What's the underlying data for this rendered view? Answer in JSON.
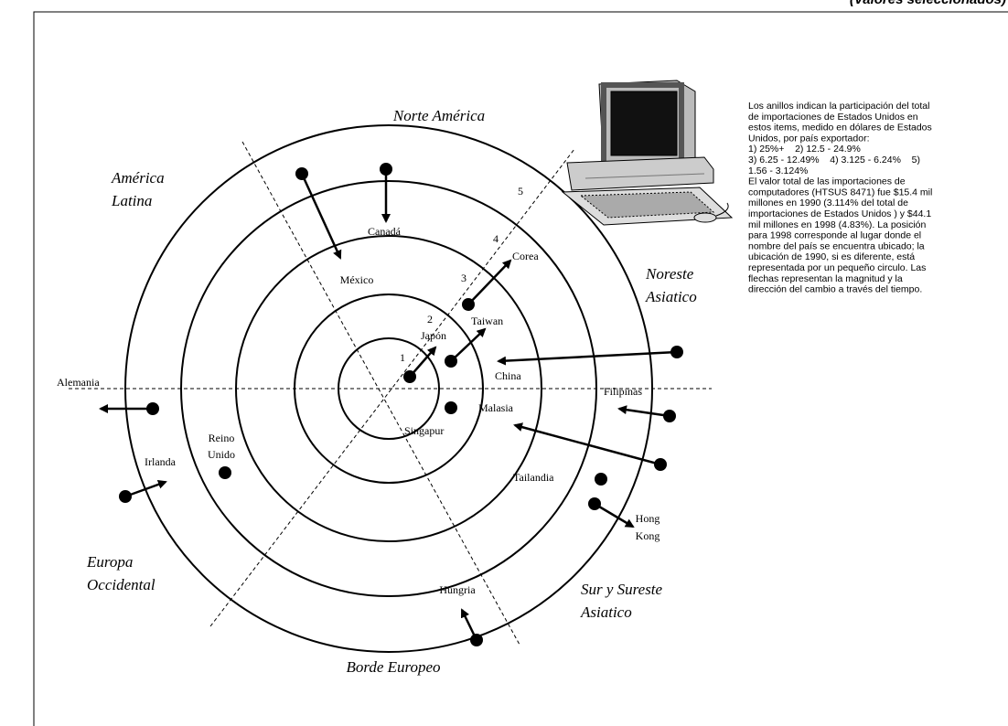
{
  "header": {
    "subtitle": "(Valores seleccionados)"
  },
  "regions": {
    "norte_america": "Norte América",
    "america_latina": [
      "América",
      "Latina"
    ],
    "noreste_asiatico": [
      "Noreste",
      "Asiatico"
    ],
    "europa_occidental": [
      "Europa",
      "Occidental"
    ],
    "sur_sureste_asiatico": [
      "Sur y Sureste",
      "Asiatico"
    ],
    "borde_europeo": "Borde Europeo"
  },
  "rings": [
    "1",
    "2",
    "3",
    "4",
    "5"
  ],
  "countries": {
    "canada": "Canadá",
    "mexico": "México",
    "corea": "Corea",
    "taiwan": "Taiwan",
    "japon": "Japón",
    "china": "China",
    "alemania": "Alemania",
    "filipinas": "Filipinas",
    "malasia": "Malasia",
    "singapur": "Singapur",
    "reino_unido": [
      "Reino",
      "Unido"
    ],
    "irlanda": "Irlanda",
    "tailandia": "Tailandia",
    "hong_kong": [
      "Hong",
      "Kong"
    ],
    "hungria": "Hungria"
  },
  "legend": {
    "lines": [
      "Los anillos indican la participación del total",
      "de importaciones de Estados Unidos en",
      "estos items, medido en dólares de Estados",
      "Unidos, por país exportador:",
      "1) 25%+    2) 12.5 - 24.9%",
      "3) 6.25 - 12.49%    4) 3.125 - 6.24%    5)",
      "1.56 - 3.124%",
      "El valor total de las importaciones de",
      "computadores (HTSUS 8471) fue $15.4 mil",
      "millones en 1990 (3.114% del total de",
      "importaciones de Estados Unidos ) y $44.1",
      "mil millones en 1998 (4.83%). La posición",
      "para 1998 corresponde al lugar donde el",
      "nombre del país se encuentra ubicado; la",
      "ubicación de 1990, si es diferente, está",
      "representada por un pequeño circulo. Las",
      "flechas representan la magnitud y la",
      "dirección del cambio a través del tiempo."
    ]
  }
}
